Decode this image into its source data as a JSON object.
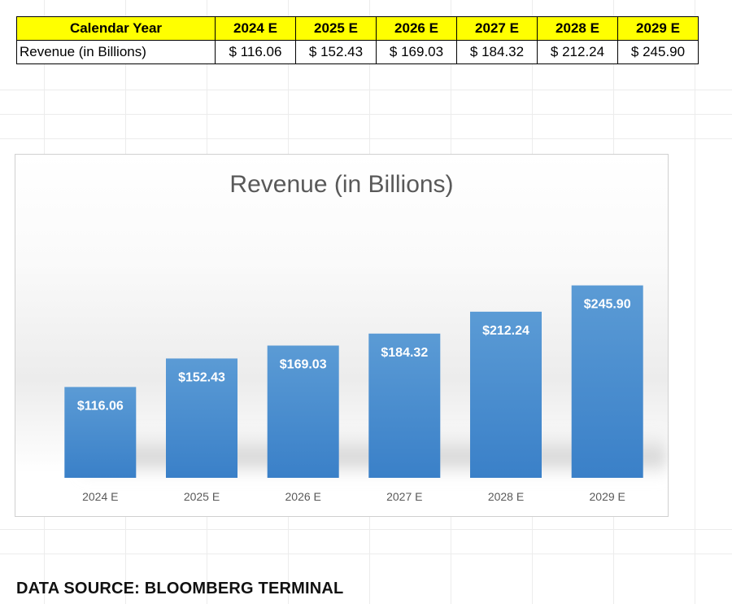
{
  "table": {
    "header_label": "Calendar Year",
    "years": [
      "2024 E",
      "2025 E",
      "2026 E",
      "2027 E",
      "2028 E",
      "2029 E"
    ],
    "row_label": "Revenue (in Billions)",
    "values": [
      "$ 116.06",
      "$ 152.43",
      "$ 169.03",
      "$ 184.32",
      "$ 212.24",
      "$ 245.90"
    ],
    "header_color": "#ffff00"
  },
  "chart_data": {
    "type": "bar",
    "title": "Revenue (in Billions)",
    "categories": [
      "2024 E",
      "2025 E",
      "2026 E",
      "2027 E",
      "2028 E",
      "2029 E"
    ],
    "values": [
      116.06,
      152.43,
      169.03,
      184.32,
      212.24,
      245.9
    ],
    "data_labels": [
      "$116.06",
      "$152.43",
      "$169.03",
      "$184.32",
      "$212.24",
      "$245.90"
    ],
    "xlabel": "",
    "ylabel": "",
    "ylim": [
      0,
      300
    ],
    "grid": false,
    "bar_color_top": "#5b9bd5",
    "bar_color_bottom": "#3a80c8"
  },
  "footer": {
    "source": "DATA SOURCE: BLOOMBERG TERMINAL"
  }
}
